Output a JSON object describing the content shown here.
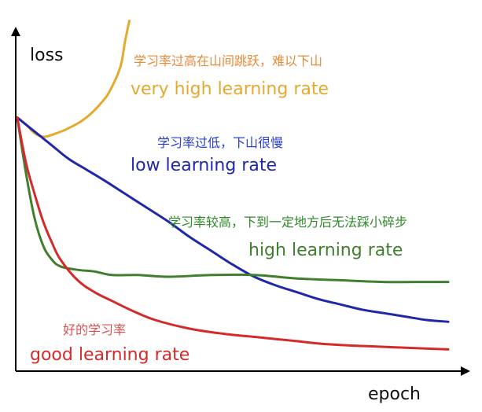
{
  "chart_data": {
    "type": "line",
    "xlabel": "epoch",
    "ylabel": "loss",
    "xlim": [
      0,
      100
    ],
    "ylim": [
      0,
      100
    ],
    "grid": false,
    "series": [
      {
        "id": "very_high",
        "name": "very high learning rate",
        "name_cn": "学习率过高在山间跳跃，难以下山",
        "color": "#e6a92f",
        "x": [
          0,
          2,
          4,
          6,
          8,
          12,
          16,
          20,
          22,
          24,
          25,
          26
        ],
        "y": [
          71,
          69,
          66.5,
          65.5,
          66,
          68,
          71,
          76,
          80,
          86,
          93,
          99
        ]
      },
      {
        "id": "low",
        "name": "low learning rate",
        "name_cn": "学习率过低，下山很慢",
        "color": "#1f28a8",
        "x": [
          0,
          4,
          8,
          12,
          16,
          20,
          25,
          30,
          35,
          40,
          45,
          50,
          55,
          60,
          65,
          70,
          75,
          80,
          85,
          90,
          95,
          100
        ],
        "y": [
          71,
          67,
          63,
          59,
          56,
          53,
          49,
          45,
          41,
          36.5,
          32.5,
          28.5,
          25,
          22.5,
          20.5,
          18.5,
          17,
          15.5,
          14.5,
          13.5,
          12.5,
          12
        ]
      },
      {
        "id": "high",
        "name": "high learning rate",
        "name_cn": "学习率较高，下到一定地方后无法踩小碎步",
        "color": "#3f7f2e",
        "x": [
          0,
          2,
          4,
          6,
          8,
          10,
          14,
          18,
          22,
          28,
          35,
          45,
          55,
          65,
          75,
          85,
          95,
          100
        ],
        "y": [
          71,
          55,
          42,
          34,
          30,
          28,
          27,
          26.5,
          25.5,
          25.5,
          25,
          25.5,
          25.5,
          24.5,
          24,
          23.5,
          23.5,
          23.5
        ]
      },
      {
        "id": "good",
        "name": "good learning rate",
        "name_cn": "好的学习率",
        "color": "#d42a2a",
        "x": [
          0,
          2,
          4,
          6,
          8,
          10,
          14,
          18,
          22,
          27,
          32,
          40,
          48,
          56,
          64,
          72,
          80,
          90,
          100
        ],
        "y": [
          71,
          58,
          49,
          41,
          35,
          30,
          24,
          20.5,
          18,
          15,
          12.5,
          10,
          8.5,
          7.5,
          6.5,
          5.5,
          5,
          4.5,
          4
        ]
      }
    ],
    "annotations": [
      {
        "series": "very_high",
        "cn": "学习率过高在山间跳跃，难以下山",
        "en": "very high learning rate"
      },
      {
        "series": "low",
        "cn": "学习率过低，下山很慢",
        "en": "low learning rate"
      },
      {
        "series": "high",
        "cn": "学习率较高，下到一定地方后无法踩小碎步",
        "en": "high learning rate"
      },
      {
        "series": "good",
        "cn": "好的学习率",
        "en": "good learning rate"
      }
    ]
  }
}
